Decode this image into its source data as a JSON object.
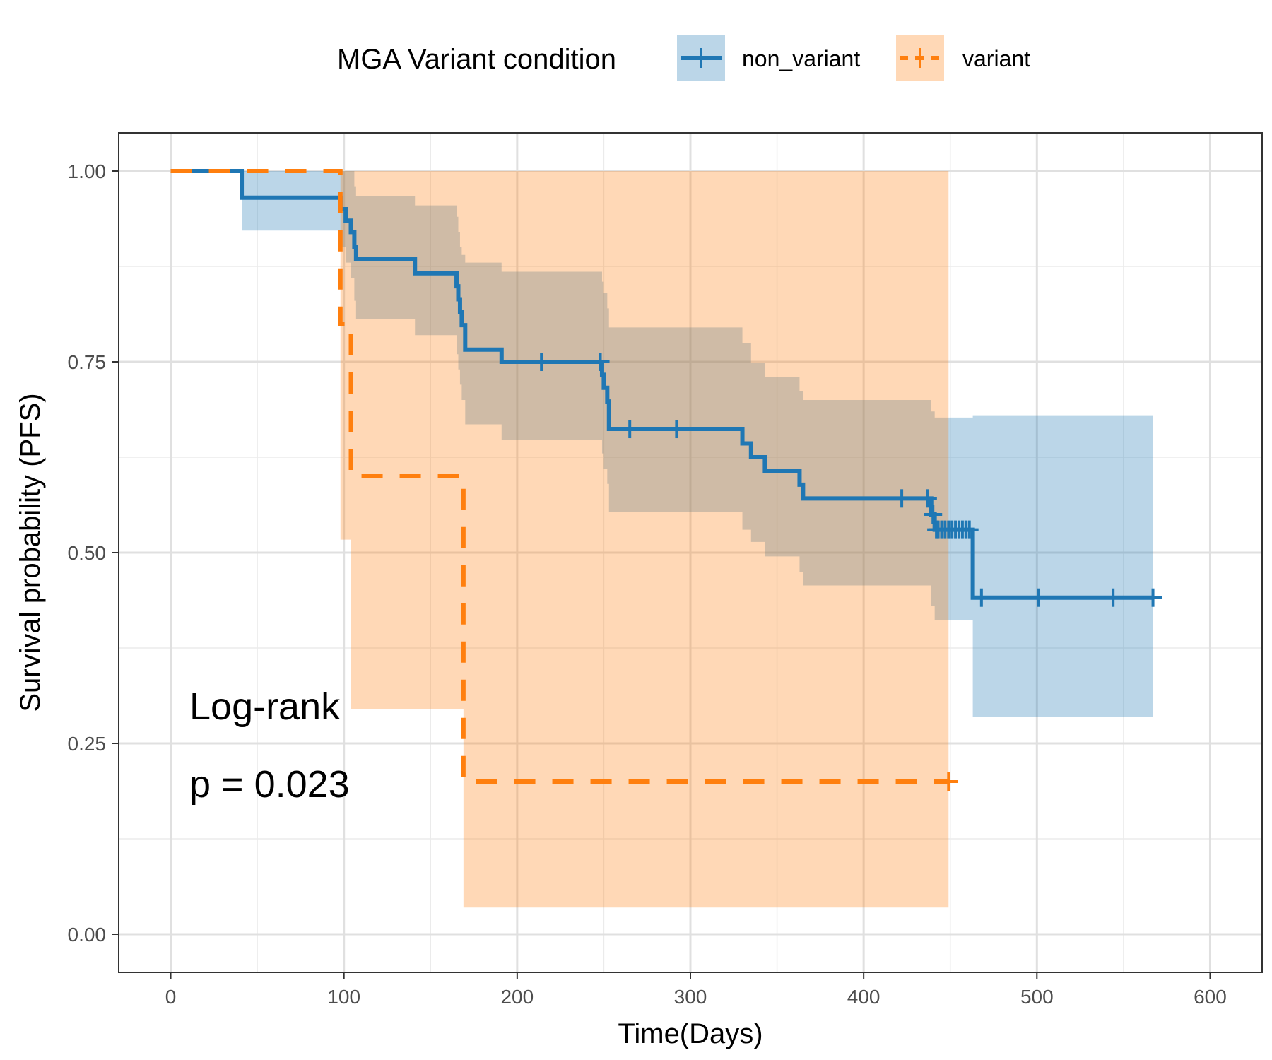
{
  "chart_data": {
    "type": "line",
    "subtype": "kaplan-meier step curves with confidence bands and censor marks",
    "xlabel": "Time(Days)",
    "ylabel": "Survival probability (PFS)",
    "xlim": [
      -30,
      630
    ],
    "ylim": [
      -0.05,
      1.05
    ],
    "xticks": [
      0,
      100,
      200,
      300,
      400,
      500,
      600
    ],
    "xtick_labels": [
      "0",
      "100",
      "200",
      "300",
      "400",
      "500",
      "600"
    ],
    "yticks": [
      0,
      0.25,
      0.5,
      0.75,
      1
    ],
    "ytick_labels": [
      "0.00",
      "0.25",
      "0.50",
      "0.75",
      "1.00"
    ],
    "grid": true,
    "legend": {
      "title": "MGA Variant condition",
      "position": "top",
      "entries": [
        "non_variant",
        "variant"
      ]
    },
    "annotations": [
      "Log-rank",
      "p = 0.023"
    ],
    "series": [
      {
        "name": "non_variant",
        "color": "#1f77b4",
        "line_style": "solid",
        "steps": [
          [
            0,
            1.0
          ],
          [
            41,
            0.965
          ],
          [
            98,
            0.95
          ],
          [
            101,
            0.935
          ],
          [
            104,
            0.92
          ],
          [
            106,
            0.9
          ],
          [
            107,
            0.885
          ],
          [
            141,
            0.866
          ],
          [
            165,
            0.849
          ],
          [
            166,
            0.832
          ],
          [
            167,
            0.815
          ],
          [
            168,
            0.798
          ],
          [
            170,
            0.766
          ],
          [
            191,
            0.75
          ],
          [
            249,
            0.733
          ],
          [
            250,
            0.716
          ],
          [
            252,
            0.698
          ],
          [
            253,
            0.662
          ],
          [
            330,
            0.643
          ],
          [
            335,
            0.625
          ],
          [
            343,
            0.607
          ],
          [
            363,
            0.589
          ],
          [
            365,
            0.571
          ],
          [
            439,
            0.55
          ],
          [
            441,
            0.53
          ],
          [
            463,
            0.441
          ]
        ],
        "end_x": 567,
        "ci_steps": [
          [
            0,
            1.0,
            1.0
          ],
          [
            41,
            1.0,
            0.922
          ],
          [
            98,
            1.0,
            0.9
          ],
          [
            101,
            1.0,
            0.88
          ],
          [
            104,
            1.0,
            0.86
          ],
          [
            106,
            0.98,
            0.83
          ],
          [
            107,
            0.967,
            0.806
          ],
          [
            141,
            0.955,
            0.785
          ],
          [
            165,
            0.94,
            0.76
          ],
          [
            166,
            0.92,
            0.74
          ],
          [
            167,
            0.9,
            0.72
          ],
          [
            168,
            0.89,
            0.7
          ],
          [
            170,
            0.88,
            0.668
          ],
          [
            191,
            0.868,
            0.648
          ],
          [
            249,
            0.855,
            0.63
          ],
          [
            250,
            0.84,
            0.61
          ],
          [
            252,
            0.82,
            0.59
          ],
          [
            253,
            0.795,
            0.553
          ],
          [
            330,
            0.775,
            0.53
          ],
          [
            335,
            0.749,
            0.514
          ],
          [
            343,
            0.73,
            0.495
          ],
          [
            363,
            0.712,
            0.475
          ],
          [
            365,
            0.7,
            0.457
          ],
          [
            439,
            0.685,
            0.43
          ],
          [
            441,
            0.677,
            0.412
          ],
          [
            463,
            0.68,
            0.285
          ]
        ],
        "censor_times": [
          214,
          248,
          265,
          292,
          422,
          437,
          440,
          442,
          443,
          445,
          447,
          449,
          451,
          453,
          455,
          457,
          459,
          461,
          468,
          501,
          544,
          567
        ],
        "confidence_color": "#1f77b4"
      },
      {
        "name": "variant",
        "color": "#ff7f0e",
        "line_style": "dashed",
        "steps": [
          [
            0,
            1.0
          ],
          [
            98,
            0.8
          ],
          [
            104,
            0.6
          ],
          [
            169,
            0.2
          ]
        ],
        "end_x": 449,
        "ci_steps": [
          [
            0,
            1.0,
            1.0
          ],
          [
            98,
            1.0,
            0.517
          ],
          [
            104,
            1.0,
            0.295
          ],
          [
            169,
            1.0,
            0.035
          ]
        ],
        "censor_times": [
          449
        ],
        "confidence_color": "#ff7f0e"
      }
    ]
  }
}
